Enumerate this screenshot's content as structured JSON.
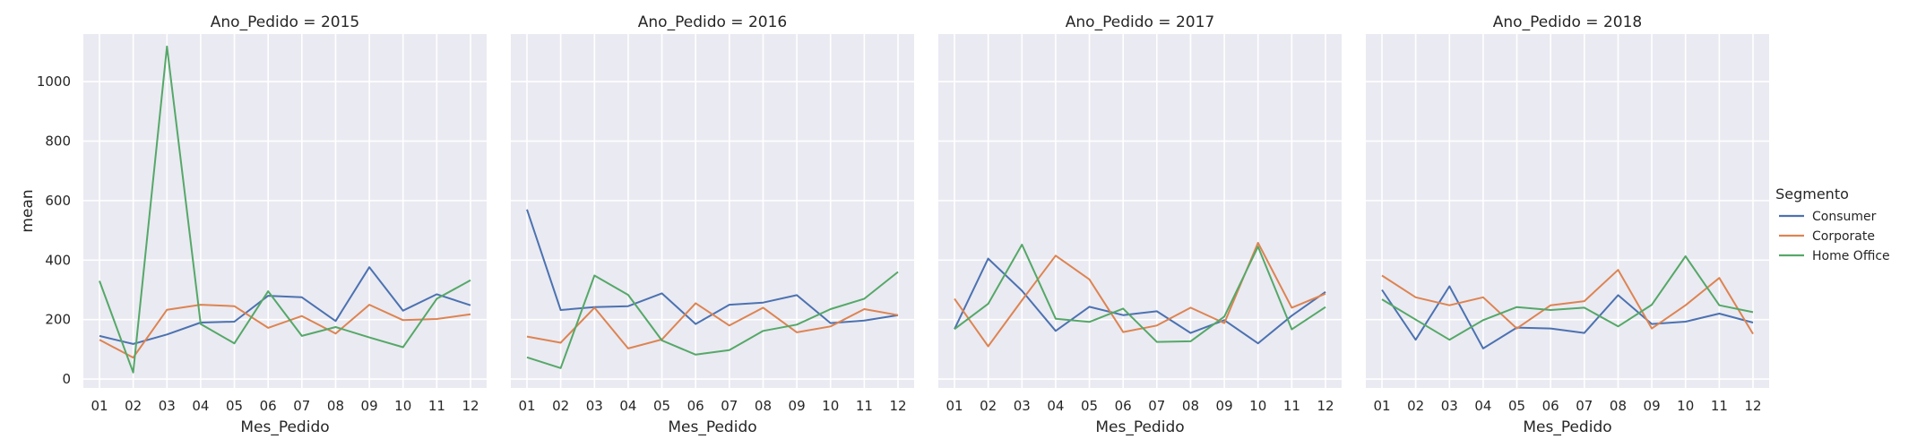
{
  "chart_data": {
    "type": "line",
    "facet_variable": "Ano_Pedido",
    "xlabel": "Mes_Pedido",
    "ylabel": "mean",
    "ylim": [
      -30,
      1160
    ],
    "yticks": [
      0,
      200,
      400,
      600,
      800,
      1000
    ],
    "categories": [
      "01",
      "02",
      "03",
      "04",
      "05",
      "06",
      "07",
      "08",
      "09",
      "10",
      "11",
      "12"
    ],
    "grid": true,
    "legend": {
      "title": "Segmento",
      "placement": "right",
      "entries": [
        "Consumer",
        "Corporate",
        "Home Office"
      ]
    },
    "colors": {
      "Consumer": "#4c72b0",
      "Corporate": "#dd8452",
      "Home Office": "#55a868"
    },
    "panels": [
      {
        "title": "Ano_Pedido = 2015",
        "series": [
          {
            "name": "Consumer",
            "values": [
              145,
              118,
              150,
              190,
              193,
              280,
              275,
              195,
              376,
              230,
              285,
              248
            ]
          },
          {
            "name": "Corporate",
            "values": [
              132,
              72,
              233,
              250,
              245,
              172,
              212,
              153,
              250,
              198,
              202,
              218
            ]
          },
          {
            "name": "Home Office",
            "values": [
              330,
              22,
              1118,
              185,
              120,
              295,
              145,
              175,
              140,
              107,
              270,
              332
            ]
          }
        ]
      },
      {
        "title": "Ano_Pedido = 2016",
        "series": [
          {
            "name": "Consumer",
            "values": [
              570,
              232,
              242,
              245,
              288,
              185,
              250,
              257,
              282,
              188,
              197,
              215
            ]
          },
          {
            "name": "Corporate",
            "values": [
              143,
              122,
              240,
              103,
              133,
              255,
              180,
              240,
              157,
              177,
              235,
              215
            ]
          },
          {
            "name": "Home Office",
            "values": [
              73,
              37,
              348,
              283,
              130,
              82,
              97,
              162,
              183,
              235,
              270,
              360
            ]
          }
        ]
      },
      {
        "title": "Ano_Pedido = 2017",
        "series": [
          {
            "name": "Consumer",
            "values": [
              168,
              405,
              297,
              162,
              243,
              215,
              228,
              155,
              198,
              120,
              213,
              293
            ]
          },
          {
            "name": "Corporate",
            "values": [
              270,
              110,
              265,
              415,
              335,
              158,
              180,
              240,
              188,
              458,
              240,
              287
            ]
          },
          {
            "name": "Home Office",
            "values": [
              168,
              253,
              452,
              203,
              192,
              237,
              125,
              127,
              210,
              445,
              167,
              242
            ]
          }
        ]
      },
      {
        "title": "Ano_Pedido = 2018",
        "series": [
          {
            "name": "Consumer",
            "values": [
              300,
              132,
              312,
              103,
              173,
              170,
              155,
              282,
              185,
              193,
              220,
              190
            ]
          },
          {
            "name": "Corporate",
            "values": [
              348,
              275,
              248,
              275,
              170,
              248,
              262,
              367,
              170,
              248,
              340,
              152
            ]
          },
          {
            "name": "Home Office",
            "values": [
              268,
              200,
              132,
              198,
              242,
              232,
              240,
              177,
              250,
              413,
              248,
              225
            ]
          }
        ]
      }
    ]
  }
}
